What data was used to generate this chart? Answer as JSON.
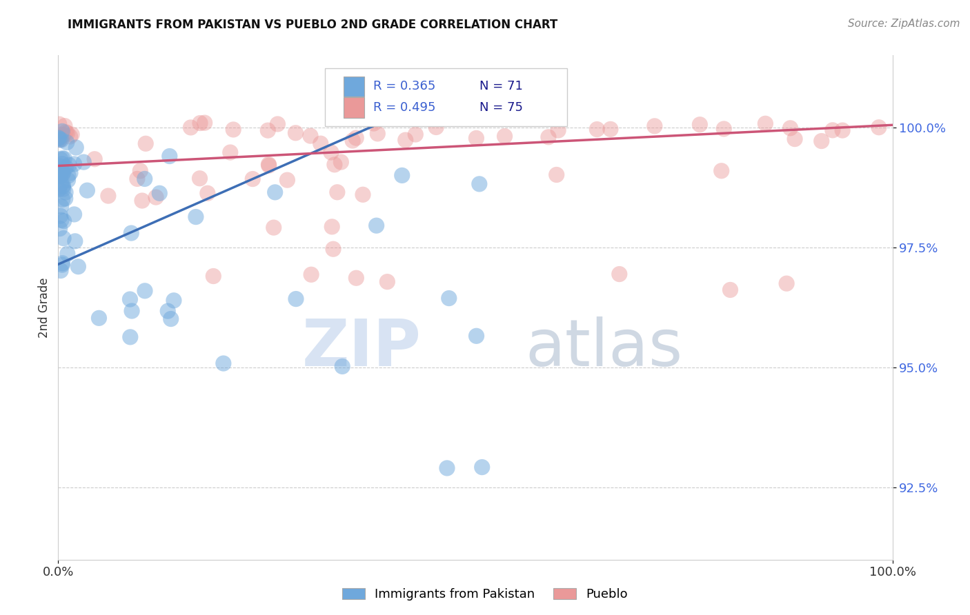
{
  "title": "IMMIGRANTS FROM PAKISTAN VS PUEBLO 2ND GRADE CORRELATION CHART",
  "source": "Source: ZipAtlas.com",
  "ylabel": "2nd Grade",
  "xlim": [
    0.0,
    100.0
  ],
  "ylim": [
    91.0,
    101.5
  ],
  "yticks": [
    92.5,
    95.0,
    97.5,
    100.0
  ],
  "xtick_labels": [
    "0.0%",
    "100.0%"
  ],
  "ytick_labels": [
    "92.5%",
    "95.0%",
    "97.5%",
    "100.0%"
  ],
  "legend_label1": "Immigrants from Pakistan",
  "legend_label2": "Pueblo",
  "blue_color": "#6fa8dc",
  "pink_color": "#ea9999",
  "trend_blue": "#3d6eb5",
  "trend_pink": "#cc5577",
  "watermark_zip": "ZIP",
  "watermark_atlas": "atlas",
  "blue_trend_x": [
    0.0,
    42.0
  ],
  "blue_trend_y": [
    97.15,
    100.35
  ],
  "pink_trend_x": [
    0.0,
    100.0
  ],
  "pink_trend_y": [
    99.2,
    100.05
  ],
  "legend_r1": "R = 0.365",
  "legend_n1": "N = 71",
  "legend_r2": "R = 0.495",
  "legend_n2": "N = 75"
}
